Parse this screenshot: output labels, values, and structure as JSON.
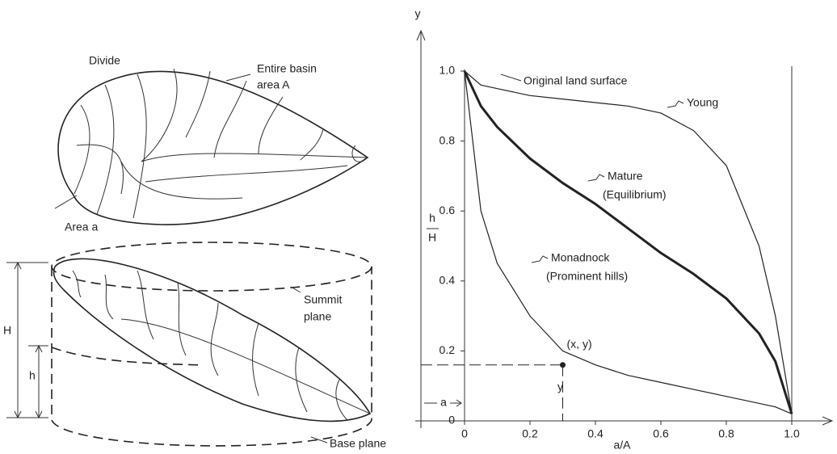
{
  "basin_figure": {
    "divide": "Divide",
    "entire_basin": [
      "Entire basin",
      "area  A"
    ],
    "area_a": "Area a",
    "H": "H",
    "h": "h",
    "summit_plane": [
      "Summit",
      "plane"
    ],
    "base_plane": "Base plane"
  },
  "chart_data": {
    "type": "line",
    "y_label": "y",
    "y_fraction": [
      "h",
      "H"
    ],
    "x_label": "a/A",
    "annotation": "Original land surface",
    "x": [
      0,
      0.05,
      0.1,
      0.2,
      0.3,
      0.4,
      0.5,
      0.6,
      0.7,
      0.8,
      0.9,
      0.95,
      1.0
    ],
    "series": [
      {
        "name": "Young",
        "values": [
          1.0,
          0.96,
          0.95,
          0.93,
          0.92,
          0.91,
          0.9,
          0.88,
          0.83,
          0.73,
          0.5,
          0.3,
          0.02
        ]
      },
      {
        "name": "Mature",
        "note": "(Equilibrium)",
        "values": [
          1.0,
          0.9,
          0.84,
          0.75,
          0.68,
          0.62,
          0.55,
          0.48,
          0.42,
          0.35,
          0.25,
          0.17,
          0.02
        ]
      },
      {
        "name": "Monadnock",
        "note": "(Prominent hills)",
        "values": [
          1.0,
          0.6,
          0.45,
          0.3,
          0.2,
          0.16,
          0.13,
          0.11,
          0.09,
          0.07,
          0.05,
          0.04,
          0.02
        ]
      }
    ],
    "point": {
      "x": 0.3,
      "y": 0.16,
      "label": "(x, y)",
      "x_label": "a",
      "y_label": "y"
    },
    "xlim": [
      0,
      1.0
    ],
    "ylim": [
      0,
      1.0
    ],
    "xticks": [
      0,
      0.2,
      0.4,
      0.6,
      0.8,
      {
        "value": 1.0,
        "label": "1.0"
      }
    ],
    "yticks": [
      0,
      0.2,
      0.4,
      0.6,
      0.8,
      {
        "value": 1.0,
        "label": "1.0"
      }
    ]
  }
}
